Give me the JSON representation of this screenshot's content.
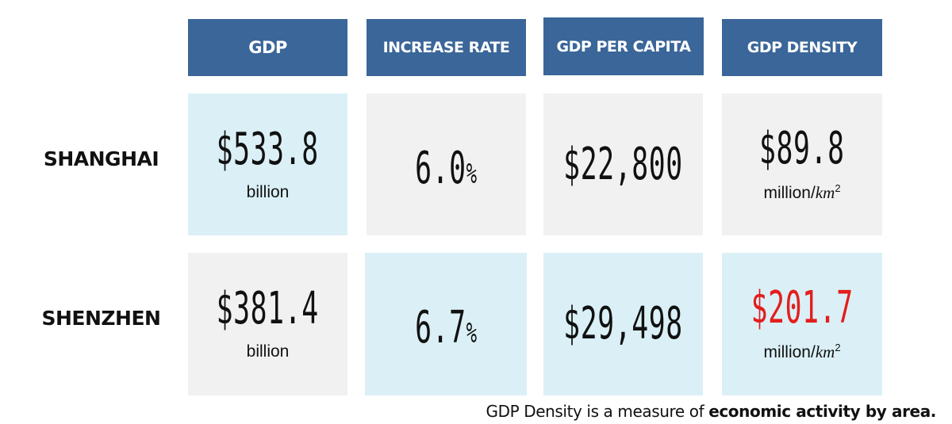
{
  "chart_data": {
    "type": "table",
    "columns": [
      "GDP",
      "INCREASE RATE",
      "GDP PER CAPITA",
      "GDP DENSITY"
    ],
    "rows": [
      {
        "label": "SHANGHAI",
        "gdp": {
          "value": "$533.8",
          "unit": "billion"
        },
        "increase_rate": {
          "value": "6.0",
          "unit": "%"
        },
        "gdp_per_capita": {
          "value": "$22,800"
        },
        "gdp_density": {
          "value": "$89.8",
          "unit_prefix": "million/",
          "unit_main": "km",
          "unit_exp": "2"
        }
      },
      {
        "label": "SHENZHEN",
        "gdp": {
          "value": "$381.4",
          "unit": "billion"
        },
        "increase_rate": {
          "value": "6.7",
          "unit": "%"
        },
        "gdp_per_capita": {
          "value": "$29,498"
        },
        "gdp_density": {
          "value": "$201.7",
          "unit_prefix": "million/",
          "unit_main": "km",
          "unit_exp": "2"
        }
      }
    ],
    "numeric_values": {
      "SHANGHAI": {
        "gdp_billion": 533.8,
        "increase_rate_pct": 6.0,
        "gdp_per_capita": 22800,
        "gdp_density_million_per_km2": 89.8
      },
      "SHENZHEN": {
        "gdp_billion": 381.4,
        "increase_rate_pct": 6.7,
        "gdp_per_capita": 29498,
        "gdp_density_million_per_km2": 201.7
      }
    }
  },
  "colors": {
    "header_bg": "#3a6699",
    "header_text": "#ffffff",
    "cell_blue": "#daf0f6",
    "cell_grey": "#f1f1f1",
    "highlight_red": "#e31e1e",
    "text": "#111111"
  },
  "footnote": {
    "prefix": "GDP Density is a measure of ",
    "emphasis": "economic activity by area."
  }
}
